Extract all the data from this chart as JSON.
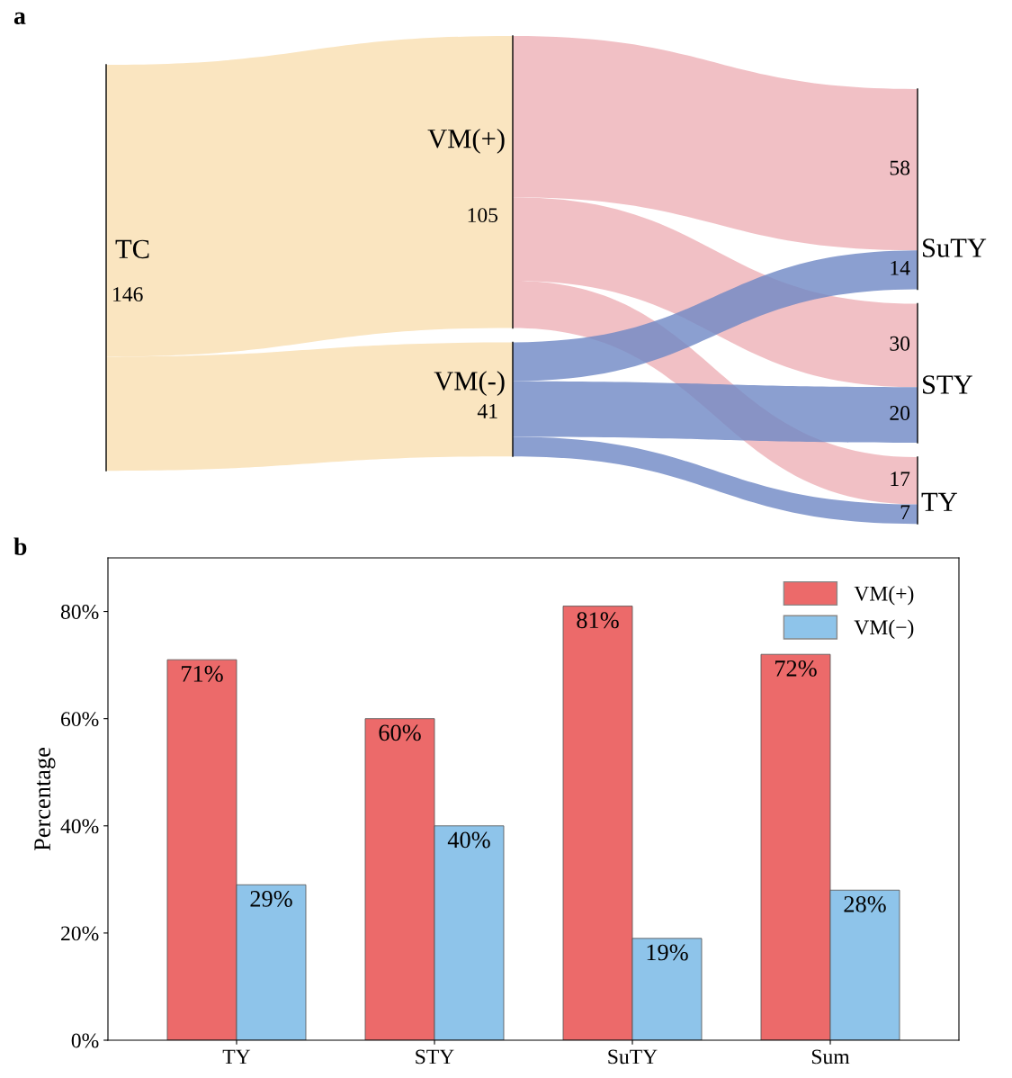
{
  "chart_data": [
    {
      "type": "other",
      "title": "a",
      "categories": [
        "TC",
        "VM(+)",
        "VM(-)",
        "SuTY",
        "STY",
        "TY"
      ],
      "values": [
        146,
        105,
        41,
        null,
        null,
        null
      ],
      "value_labels": [
        "146",
        "105",
        "41",
        null,
        null,
        null
      ],
      "colors": [
        "#fae5c0",
        "#fae5c0",
        "#fae5c0",
        null,
        null,
        null
      ],
      "series": [
        {
          "color": "#eba5ad",
          "values": [
            null,
            null,
            null,
            58,
            30,
            17
          ],
          "value_labels": [
            null,
            null,
            null,
            "58",
            "30",
            "17"
          ]
        },
        {
          "color": "#6e87c4",
          "values": [
            null,
            null,
            null,
            14,
            20,
            7
          ],
          "value_labels": [
            null,
            null,
            null,
            "14",
            "20",
            "7"
          ]
        }
      ]
    },
    {
      "type": "bar",
      "title": "b",
      "ylabel": "Percentage",
      "categories": [
        "TY",
        "STY",
        "SuTY",
        "Sum"
      ],
      "series": [
        {
          "name": "VM(+)",
          "color": "#ec6a6a",
          "values": [
            71,
            60,
            81,
            72
          ],
          "value_labels": [
            "71%",
            "60%",
            "81%",
            "72%"
          ]
        },
        {
          "name": "VM(−)",
          "color": "#8ec4ea",
          "values": [
            29,
            40,
            19,
            28
          ],
          "value_labels": [
            "29%",
            "40%",
            "19%",
            "28%"
          ]
        }
      ],
      "ylim": [
        0,
        90
      ],
      "yticks": [
        {
          "value": 0,
          "label": "0%"
        },
        {
          "value": 20,
          "label": "20%"
        },
        {
          "value": 40,
          "label": "40%"
        },
        {
          "value": 60,
          "label": "60%"
        },
        {
          "value": 80,
          "label": "80%"
        }
      ],
      "grid": false,
      "legend": "top right"
    }
  ]
}
